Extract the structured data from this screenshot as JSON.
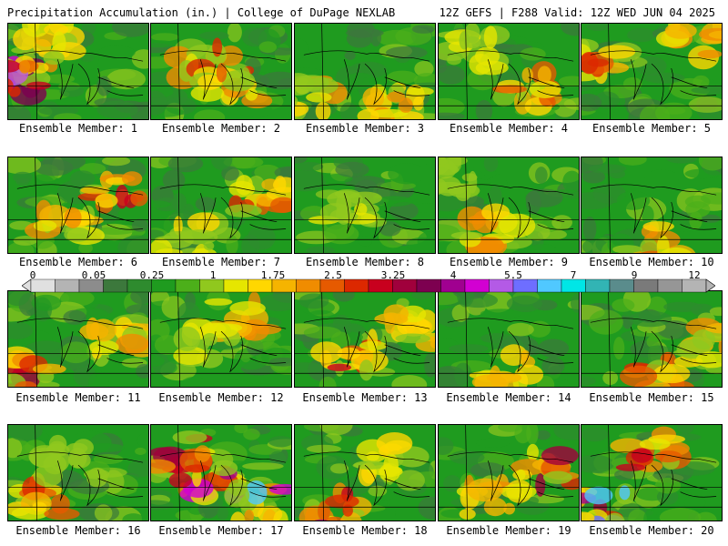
{
  "header": {
    "left": "Precipitation Accumulation (in.) | College of DuPage NEXLAB",
    "right": "12Z GEFS | F288 Valid: 12Z WED JUN 04 2025"
  },
  "colors": {
    "scale": [
      "#e0e0e0",
      "#b4b4b4",
      "#8c8c8c",
      "#3c783c",
      "#2e8b2e",
      "#1f9b1f",
      "#4caf1a",
      "#90c81e",
      "#e6e600",
      "#ffd700",
      "#f5b400",
      "#f08c00",
      "#e65a00",
      "#dc2800",
      "#c8001e",
      "#a0003c",
      "#7d0050",
      "#a00090",
      "#d200d2",
      "#b45ae6",
      "#6e6eff",
      "#50c8ff",
      "#00e6e6",
      "#32b4b4",
      "#5a8c8c",
      "#7a7a7a",
      "#969696",
      "#b4b4b4"
    ],
    "map_lines": "#000000"
  },
  "colorbar": {
    "ticks": [
      "0",
      "0.05",
      "0.25",
      "1",
      "1.75",
      "2.5",
      "3.25",
      "4",
      "5.5",
      "7",
      "9",
      "12"
    ]
  },
  "members": [
    {
      "label": "Ensemble Member: 1"
    },
    {
      "label": "Ensemble Member: 2"
    },
    {
      "label": "Ensemble Member: 3"
    },
    {
      "label": "Ensemble Member: 4"
    },
    {
      "label": "Ensemble Member: 5"
    },
    {
      "label": "Ensemble Member: 6"
    },
    {
      "label": "Ensemble Member: 7"
    },
    {
      "label": "Ensemble Member: 8"
    },
    {
      "label": "Ensemble Member: 9"
    },
    {
      "label": "Ensemble Member: 10"
    },
    {
      "label": "Ensemble Member: 11"
    },
    {
      "label": "Ensemble Member: 12"
    },
    {
      "label": "Ensemble Member: 13"
    },
    {
      "label": "Ensemble Member: 14"
    },
    {
      "label": "Ensemble Member: 15"
    },
    {
      "label": "Ensemble Member: 16"
    },
    {
      "label": "Ensemble Member: 17"
    },
    {
      "label": "Ensemble Member: 18"
    },
    {
      "label": "Ensemble Member: 19"
    },
    {
      "label": "Ensemble Member: 20"
    }
  ]
}
